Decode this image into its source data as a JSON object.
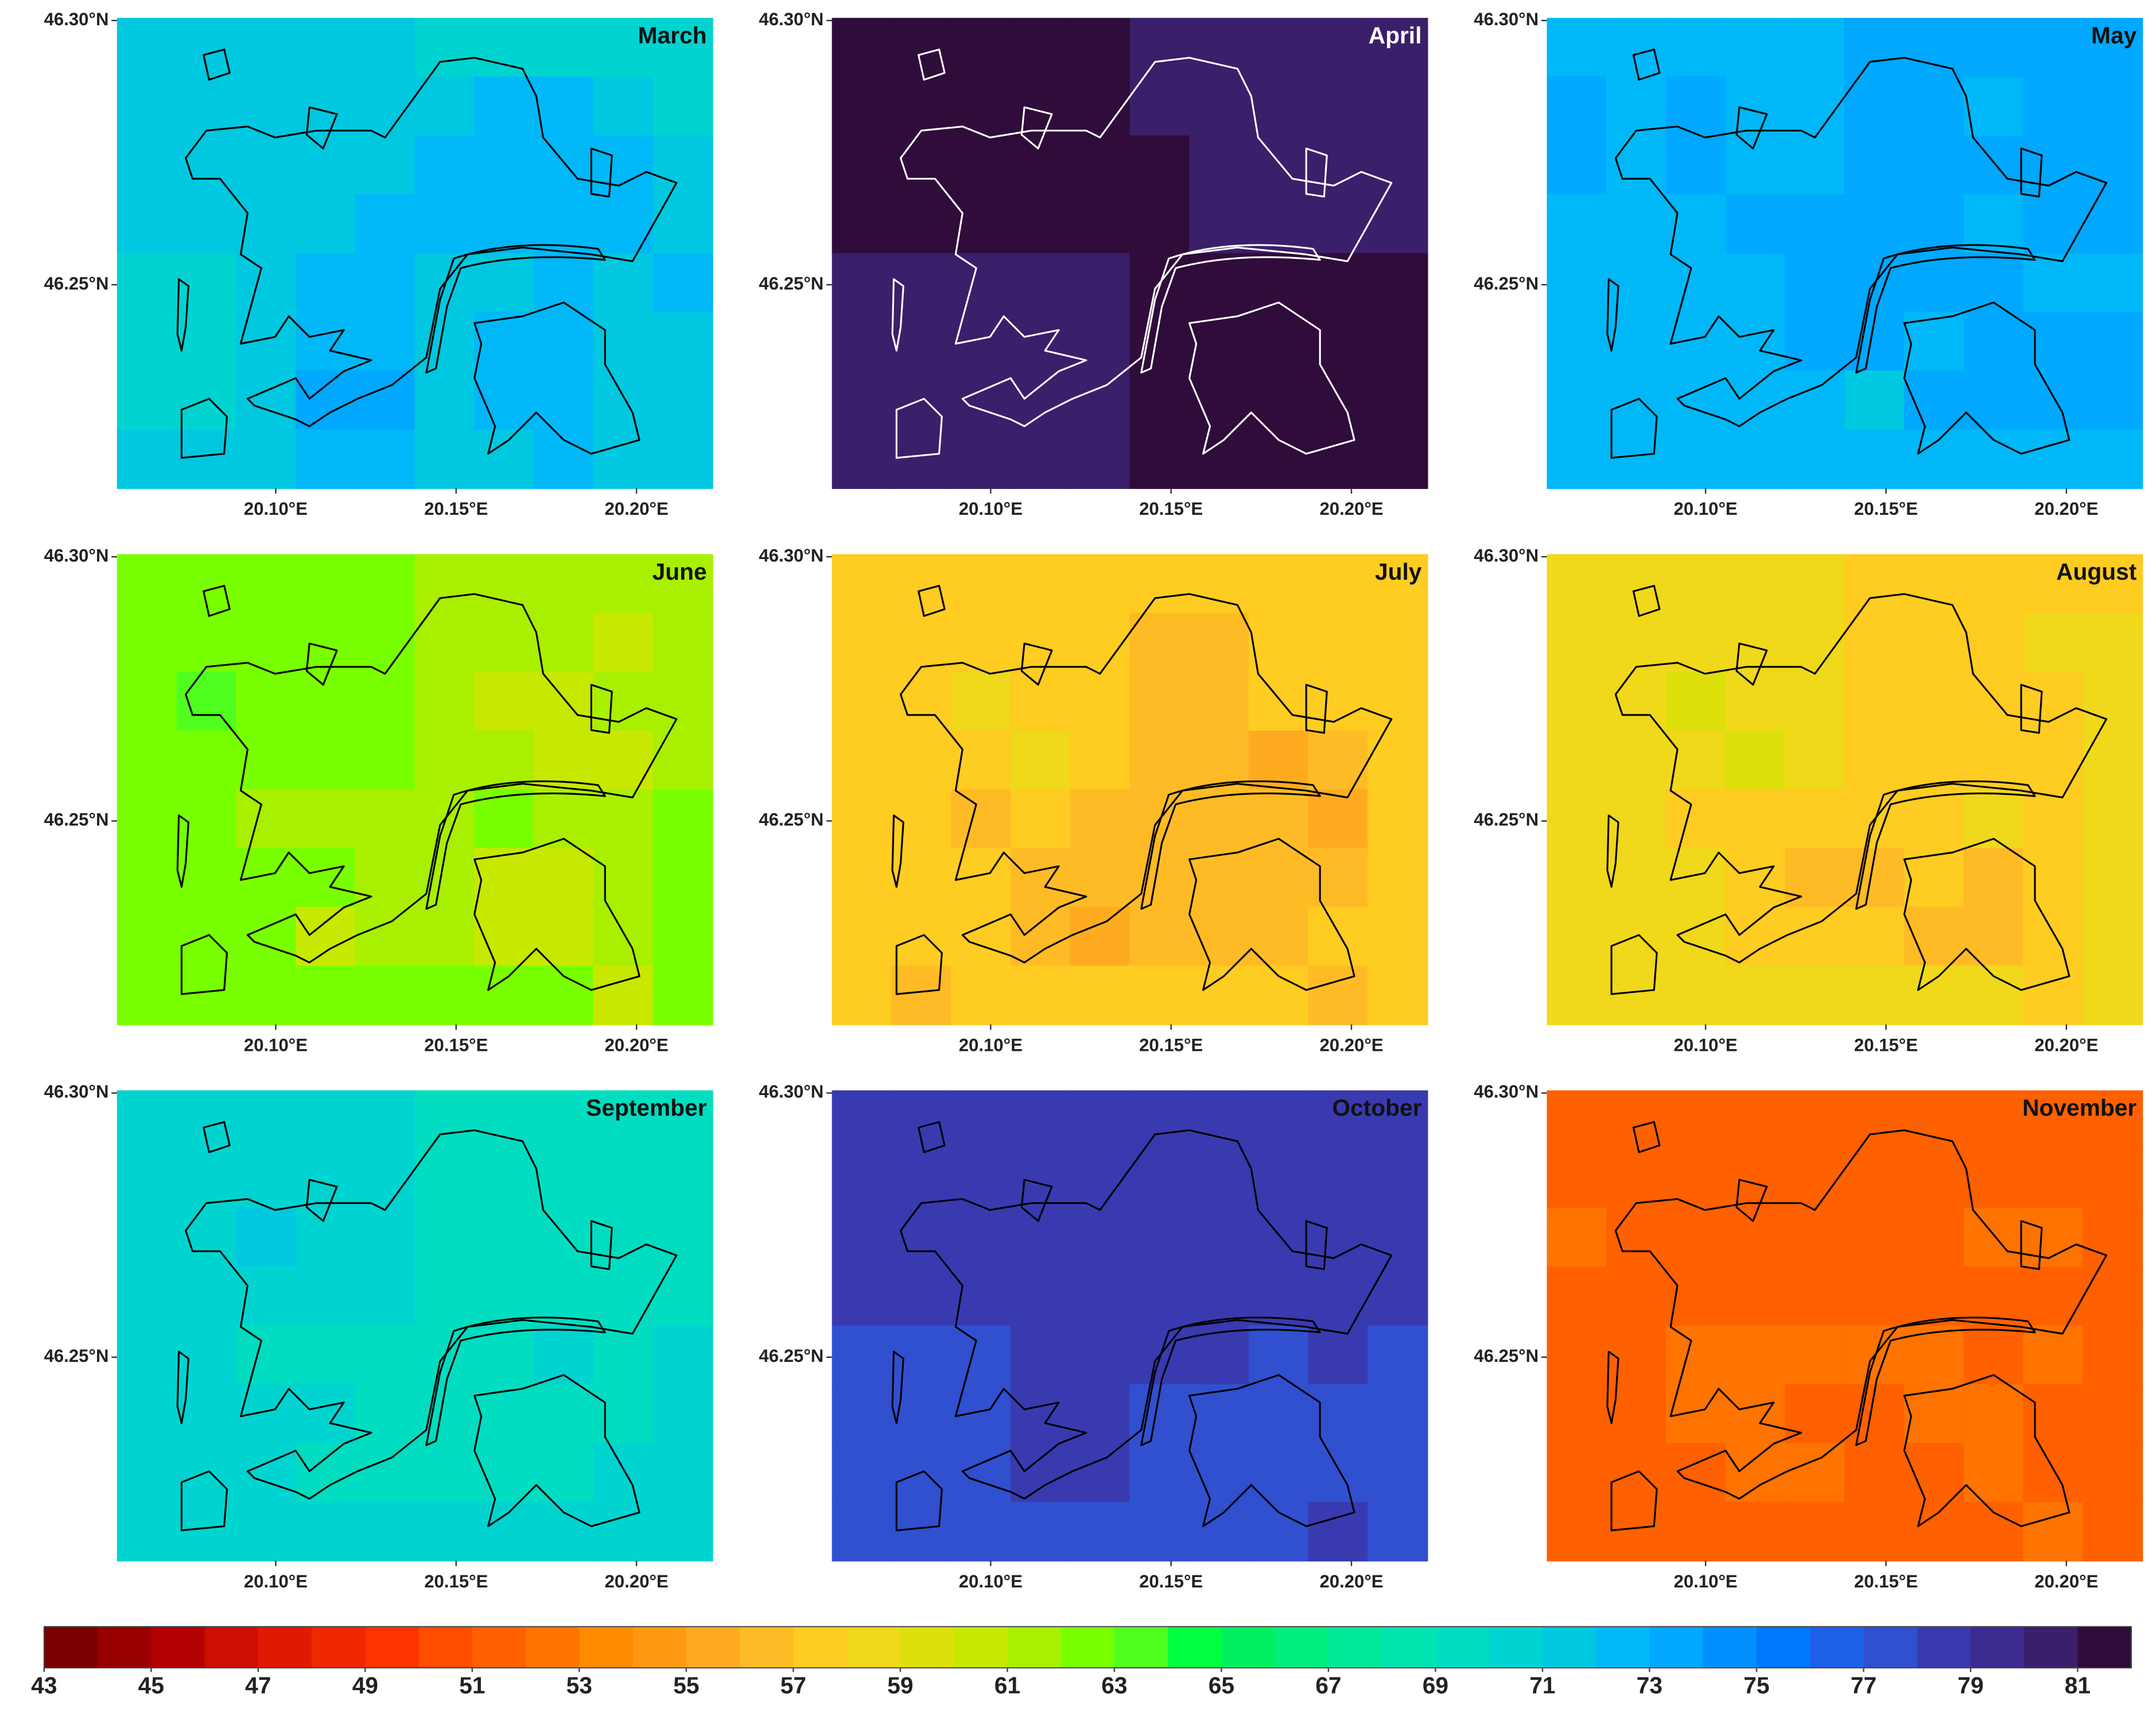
{
  "chart_data": [
    {
      "type": "heatmap",
      "title": "March",
      "outline_color": "#000000",
      "xlim": [
        20.056,
        20.221
      ],
      "ylim": [
        46.2115,
        46.3005
      ],
      "xticks": [
        {
          "value": 20.1,
          "label": "20.10°E"
        },
        {
          "value": 20.15,
          "label": "20.15°E"
        },
        {
          "value": 20.2,
          "label": "20.20°E"
        }
      ],
      "yticks": [
        {
          "value": 46.25,
          "label": "46.25°N"
        },
        {
          "value": 46.3,
          "label": "46.30°N"
        }
      ],
      "grid": [
        [
          71,
          71,
          71,
          71,
          71,
          70,
          70,
          70,
          70,
          70
        ],
        [
          71,
          71,
          71,
          71,
          71,
          71,
          72,
          72,
          71,
          70
        ],
        [
          71,
          71,
          71,
          71,
          71,
          72,
          72,
          72,
          72,
          71
        ],
        [
          71,
          71,
          71,
          71,
          72,
          72,
          72,
          72,
          72,
          71
        ],
        [
          70,
          70,
          71,
          72,
          72,
          71,
          71,
          72,
          71,
          72
        ],
        [
          70,
          70,
          71,
          72,
          72,
          71,
          72,
          72,
          71,
          71
        ],
        [
          70,
          70,
          71,
          73,
          73,
          71,
          72,
          72,
          71,
          71
        ],
        [
          71,
          71,
          71,
          72,
          72,
          71,
          71,
          72,
          71,
          71
        ]
      ]
    },
    {
      "type": "heatmap",
      "title": "April",
      "outline_color": "#ffffff",
      "xlim": [
        20.056,
        20.221
      ],
      "ylim": [
        46.2115,
        46.3005
      ],
      "xticks": [
        {
          "value": 20.1,
          "label": "20.10°E"
        },
        {
          "value": 20.15,
          "label": "20.15°E"
        },
        {
          "value": 20.2,
          "label": "20.20°E"
        }
      ],
      "yticks": [
        {
          "value": 46.25,
          "label": "46.25°N"
        },
        {
          "value": 46.3,
          "label": "46.30°N"
        }
      ],
      "grid": [
        [
          81,
          81,
          81,
          81,
          81,
          80,
          80,
          80,
          80,
          80
        ],
        [
          81,
          81,
          81,
          81,
          81,
          80,
          80,
          80,
          80,
          80
        ],
        [
          81,
          81,
          81,
          81,
          81,
          81,
          80,
          80,
          80,
          80
        ],
        [
          81,
          81,
          81,
          81,
          81,
          81,
          80,
          80,
          80,
          80
        ],
        [
          80,
          80,
          80,
          80,
          80,
          81,
          81,
          81,
          81,
          81
        ],
        [
          80,
          80,
          80,
          80,
          80,
          81,
          81,
          81,
          81,
          81
        ],
        [
          80,
          80,
          80,
          80,
          80,
          81,
          81,
          81,
          81,
          81
        ],
        [
          80,
          80,
          80,
          80,
          80,
          81,
          81,
          81,
          81,
          81
        ]
      ]
    },
    {
      "type": "heatmap",
      "title": "May",
      "outline_color": "#000000",
      "xlim": [
        20.056,
        20.221
      ],
      "ylim": [
        46.2115,
        46.3005
      ],
      "xticks": [
        {
          "value": 20.1,
          "label": "20.10°E"
        },
        {
          "value": 20.15,
          "label": "20.15°E"
        },
        {
          "value": 20.2,
          "label": "20.20°E"
        }
      ],
      "yticks": [
        {
          "value": 46.25,
          "label": "46.25°N"
        },
        {
          "value": 46.3,
          "label": "46.30°N"
        }
      ],
      "grid": [
        [
          72,
          72,
          72,
          72,
          72,
          73,
          73,
          73,
          73,
          73
        ],
        [
          73,
          72,
          73,
          72,
          72,
          73,
          73,
          72,
          73,
          73
        ],
        [
          73,
          72,
          73,
          72,
          72,
          73,
          73,
          73,
          73,
          73
        ],
        [
          72,
          72,
          72,
          73,
          73,
          73,
          73,
          72,
          73,
          73
        ],
        [
          72,
          72,
          72,
          72,
          73,
          73,
          73,
          73,
          72,
          72
        ],
        [
          72,
          72,
          72,
          72,
          73,
          73,
          72,
          73,
          73,
          73
        ],
        [
          72,
          72,
          72,
          72,
          72,
          71,
          73,
          73,
          73,
          73
        ],
        [
          72,
          72,
          72,
          72,
          72,
          72,
          72,
          72,
          72,
          72
        ]
      ]
    },
    {
      "type": "heatmap",
      "title": "June",
      "outline_color": "#000000",
      "xlim": [
        20.056,
        20.221
      ],
      "ylim": [
        46.2115,
        46.3005
      ],
      "xticks": [
        {
          "value": 20.1,
          "label": "20.10°E"
        },
        {
          "value": 20.15,
          "label": "20.15°E"
        },
        {
          "value": 20.2,
          "label": "20.20°E"
        }
      ],
      "yticks": [
        {
          "value": 46.25,
          "label": "46.25°N"
        },
        {
          "value": 46.3,
          "label": "46.30°N"
        }
      ],
      "grid": [
        [
          62,
          62,
          62,
          62,
          62,
          61,
          61,
          61,
          61,
          61
        ],
        [
          62,
          62,
          62,
          62,
          62,
          61,
          61,
          61,
          60,
          61
        ],
        [
          62,
          63,
          62,
          62,
          62,
          61,
          60,
          60,
          61,
          61
        ],
        [
          62,
          62,
          62,
          62,
          62,
          61,
          61,
          60,
          60,
          61
        ],
        [
          62,
          62,
          61,
          61,
          61,
          61,
          62,
          61,
          61,
          62
        ],
        [
          62,
          62,
          62,
          62,
          61,
          61,
          60,
          60,
          61,
          62
        ],
        [
          62,
          62,
          62,
          60,
          61,
          61,
          60,
          60,
          61,
          62
        ],
        [
          62,
          62,
          62,
          62,
          62,
          62,
          62,
          62,
          60,
          62
        ]
      ]
    },
    {
      "type": "heatmap",
      "title": "July",
      "outline_color": "#000000",
      "xlim": [
        20.056,
        20.221
      ],
      "ylim": [
        46.2115,
        46.3005
      ],
      "xticks": [
        {
          "value": 20.1,
          "label": "20.10°E"
        },
        {
          "value": 20.15,
          "label": "20.15°E"
        },
        {
          "value": 20.2,
          "label": "20.20°E"
        }
      ],
      "yticks": [
        {
          "value": 46.25,
          "label": "46.25°N"
        },
        {
          "value": 46.3,
          "label": "46.30°N"
        }
      ],
      "grid": [
        [
          57,
          57,
          57,
          57,
          57,
          57,
          57,
          57,
          57,
          57
        ],
        [
          57,
          57,
          57,
          57,
          57,
          56,
          56,
          57,
          57,
          57
        ],
        [
          57,
          57,
          58,
          57,
          57,
          56,
          56,
          57,
          57,
          57
        ],
        [
          57,
          57,
          57,
          58,
          57,
          56,
          56,
          55,
          56,
          57
        ],
        [
          57,
          57,
          56,
          57,
          56,
          56,
          56,
          56,
          55,
          57
        ],
        [
          57,
          57,
          57,
          56,
          56,
          56,
          56,
          56,
          56,
          57
        ],
        [
          57,
          57,
          57,
          56,
          55,
          56,
          56,
          56,
          57,
          57
        ],
        [
          57,
          56,
          57,
          57,
          57,
          57,
          57,
          57,
          56,
          57
        ]
      ]
    },
    {
      "type": "heatmap",
      "title": "August",
      "outline_color": "#000000",
      "xlim": [
        20.056,
        20.221
      ],
      "ylim": [
        46.2115,
        46.3005
      ],
      "xticks": [
        {
          "value": 20.1,
          "label": "20.10°E"
        },
        {
          "value": 20.15,
          "label": "20.15°E"
        },
        {
          "value": 20.2,
          "label": "20.20°E"
        }
      ],
      "yticks": [
        {
          "value": 46.25,
          "label": "46.25°N"
        },
        {
          "value": 46.3,
          "label": "46.30°N"
        }
      ],
      "grid": [
        [
          58,
          58,
          58,
          58,
          58,
          57,
          57,
          57,
          57,
          57
        ],
        [
          58,
          58,
          58,
          58,
          58,
          57,
          57,
          57,
          58,
          58
        ],
        [
          58,
          58,
          59,
          58,
          58,
          57,
          57,
          57,
          57,
          58
        ],
        [
          58,
          58,
          58,
          59,
          58,
          57,
          57,
          57,
          57,
          58
        ],
        [
          58,
          58,
          57,
          57,
          57,
          57,
          57,
          58,
          57,
          58
        ],
        [
          58,
          58,
          58,
          57,
          56,
          56,
          57,
          56,
          57,
          58
        ],
        [
          58,
          58,
          58,
          57,
          57,
          57,
          56,
          56,
          57,
          58
        ],
        [
          58,
          58,
          58,
          58,
          58,
          58,
          58,
          58,
          57,
          58
        ]
      ]
    },
    {
      "type": "heatmap",
      "title": "September",
      "outline_color": "#000000",
      "xlim": [
        20.056,
        20.221
      ],
      "ylim": [
        46.2115,
        46.3005
      ],
      "xticks": [
        {
          "value": 20.1,
          "label": "20.10°E"
        },
        {
          "value": 20.15,
          "label": "20.15°E"
        },
        {
          "value": 20.2,
          "label": "20.20°E"
        }
      ],
      "yticks": [
        {
          "value": 46.25,
          "label": "46.25°N"
        },
        {
          "value": 46.3,
          "label": "46.30°N"
        }
      ],
      "grid": [
        [
          70,
          70,
          70,
          70,
          70,
          69,
          69,
          69,
          69,
          69
        ],
        [
          70,
          70,
          70,
          70,
          70,
          69,
          69,
          69,
          69,
          69
        ],
        [
          70,
          70,
          71,
          70,
          70,
          69,
          69,
          69,
          69,
          69
        ],
        [
          70,
          70,
          70,
          70,
          70,
          69,
          69,
          69,
          69,
          69
        ],
        [
          70,
          70,
          69,
          69,
          69,
          69,
          69,
          70,
          69,
          70
        ],
        [
          70,
          70,
          70,
          70,
          69,
          69,
          69,
          69,
          69,
          70
        ],
        [
          70,
          70,
          70,
          69,
          69,
          69,
          69,
          69,
          70,
          70
        ],
        [
          70,
          70,
          70,
          70,
          70,
          70,
          70,
          70,
          70,
          70
        ]
      ]
    },
    {
      "type": "heatmap",
      "title": "October",
      "outline_color": "#000000",
      "xlim": [
        20.056,
        20.221
      ],
      "ylim": [
        46.2115,
        46.3005
      ],
      "xticks": [
        {
          "value": 20.1,
          "label": "20.10°E"
        },
        {
          "value": 20.15,
          "label": "20.15°E"
        },
        {
          "value": 20.2,
          "label": "20.20°E"
        }
      ],
      "yticks": [
        {
          "value": 46.25,
          "label": "46.25°N"
        },
        {
          "value": 46.3,
          "label": "46.30°N"
        }
      ],
      "grid": [
        [
          78,
          78,
          78,
          78,
          78,
          78,
          78,
          78,
          78,
          78
        ],
        [
          78,
          78,
          78,
          78,
          78,
          78,
          78,
          78,
          78,
          78
        ],
        [
          78,
          78,
          78,
          78,
          78,
          78,
          78,
          78,
          78,
          78
        ],
        [
          78,
          78,
          78,
          78,
          78,
          78,
          78,
          78,
          78,
          78
        ],
        [
          77,
          77,
          77,
          78,
          78,
          78,
          78,
          77,
          78,
          77
        ],
        [
          77,
          77,
          77,
          78,
          78,
          77,
          77,
          77,
          77,
          77
        ],
        [
          77,
          77,
          77,
          78,
          78,
          77,
          77,
          77,
          77,
          77
        ],
        [
          77,
          77,
          77,
          77,
          77,
          77,
          77,
          77,
          78,
          77
        ]
      ]
    },
    {
      "type": "heatmap",
      "title": "November",
      "outline_color": "#000000",
      "xlim": [
        20.056,
        20.221
      ],
      "ylim": [
        46.2115,
        46.3005
      ],
      "xticks": [
        {
          "value": 20.1,
          "label": "20.10°E"
        },
        {
          "value": 20.15,
          "label": "20.15°E"
        },
        {
          "value": 20.2,
          "label": "20.20°E"
        }
      ],
      "yticks": [
        {
          "value": 46.25,
          "label": "46.25°N"
        },
        {
          "value": 46.3,
          "label": "46.30°N"
        }
      ],
      "grid": [
        [
          51,
          51,
          51,
          51,
          51,
          51,
          51,
          51,
          51,
          51
        ],
        [
          51,
          51,
          51,
          51,
          51,
          51,
          51,
          51,
          51,
          51
        ],
        [
          52,
          51,
          51,
          51,
          51,
          51,
          51,
          52,
          52,
          51
        ],
        [
          51,
          51,
          51,
          51,
          51,
          51,
          51,
          51,
          51,
          51
        ],
        [
          51,
          51,
          52,
          52,
          52,
          52,
          52,
          51,
          52,
          51
        ],
        [
          51,
          51,
          52,
          52,
          51,
          51,
          52,
          52,
          51,
          51
        ],
        [
          51,
          51,
          51,
          52,
          52,
          51,
          51,
          52,
          51,
          51
        ],
        [
          51,
          51,
          51,
          51,
          51,
          51,
          51,
          51,
          52,
          51
        ]
      ]
    }
  ],
  "colorbar": {
    "lim": [
      43,
      82
    ],
    "ticks": [
      43,
      45,
      47,
      49,
      51,
      53,
      55,
      57,
      59,
      61,
      63,
      65,
      67,
      69,
      71,
      73,
      75,
      77,
      79,
      81
    ],
    "colors": [
      "#7a0000",
      "#990000",
      "#b30000",
      "#cc0f00",
      "#e01a00",
      "#f02800",
      "#ff3300",
      "#ff4d00",
      "#ff6000",
      "#ff7300",
      "#ff8a00",
      "#ff9a10",
      "#ffab20",
      "#ffbb25",
      "#ffcc22",
      "#f0d81a",
      "#dde00a",
      "#c8e800",
      "#a8f000",
      "#78ff00",
      "#50ff20",
      "#00ff40",
      "#00f060",
      "#00ee80",
      "#00e898",
      "#00e4b0",
      "#00ddc0",
      "#00d4d0",
      "#00c8e0",
      "#00b8f8",
      "#00a8ff",
      "#0090ff",
      "#0078ff",
      "#1e60e8",
      "#3050d0",
      "#3a3ab0",
      "#3c2a90",
      "#3a1f6a",
      "#2f0c3a"
    ]
  }
}
